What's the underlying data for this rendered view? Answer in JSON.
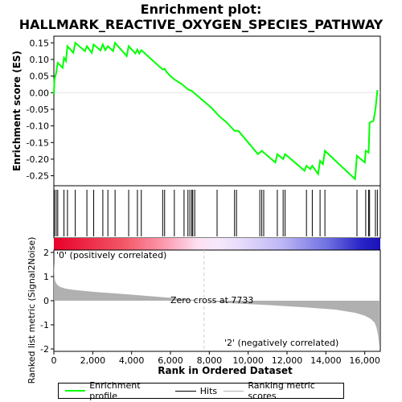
{
  "title": "Enrichment plot:\nHALLMARK_REACTIVE_OXYGEN_SPECIES_PATHWAY",
  "title_line1": "Enrichment plot:",
  "title_line2": "HALLMARK_REACTIVE_OXYGEN_SPECIES_PATHWAY",
  "colors": {
    "enrichment": "#00ff00",
    "hits": "#000000",
    "metric": "#b0b0b0",
    "zero_line": "#cfcfcf",
    "pos_label": "#ff0000",
    "neg_label": "#0000ff"
  },
  "legend": {
    "enrichment": "Enrichment profile",
    "hits": "Hits",
    "metric": "Ranking metric scores"
  },
  "chart_data": [
    {
      "type": "line",
      "name": "enrichment-profile",
      "ylabel": "Enrichment score (ES)",
      "ylim": [
        -0.28,
        0.17
      ],
      "xlim": [
        0,
        16800
      ],
      "yticks": [
        "0.15",
        "0.10",
        "0.05",
        "0.00",
        "-0.05",
        "-0.10",
        "-0.15",
        "-0.20",
        "-0.25"
      ],
      "ytick_values": [
        0.15,
        0.1,
        0.05,
        0.0,
        -0.05,
        -0.1,
        -0.15,
        -0.2,
        -0.25
      ],
      "grid": false,
      "x": [
        0,
        30,
        120,
        200,
        450,
        520,
        620,
        700,
        1000,
        1100,
        1600,
        1700,
        1950,
        2050,
        2400,
        2520,
        2650,
        2780,
        3050,
        3150,
        3750,
        3850,
        4200,
        4300,
        4400,
        4500,
        5500,
        5600,
        5700,
        5800,
        6000,
        6200,
        6600,
        6900,
        7100,
        7300,
        7700,
        8100,
        8500,
        8900,
        9300,
        9500,
        10500,
        10600,
        10700,
        10800,
        11400,
        11500,
        11800,
        11900,
        12900,
        13000,
        13200,
        13300,
        13600,
        13700,
        13850,
        13950,
        15500,
        15600,
        16000,
        16050,
        16200,
        16250,
        16450,
        16550,
        16650
      ],
      "y": [
        -0.005,
        0.04,
        0.06,
        0.09,
        0.075,
        0.105,
        0.095,
        0.14,
        0.12,
        0.15,
        0.125,
        0.14,
        0.12,
        0.145,
        0.127,
        0.145,
        0.128,
        0.14,
        0.125,
        0.15,
        0.11,
        0.14,
        0.118,
        0.13,
        0.118,
        0.128,
        0.075,
        0.07,
        0.072,
        0.062,
        0.05,
        0.04,
        0.025,
        0.01,
        0.005,
        -0.005,
        -0.025,
        -0.045,
        -0.07,
        -0.09,
        -0.115,
        -0.115,
        -0.185,
        -0.18,
        -0.175,
        -0.18,
        -0.21,
        -0.185,
        -0.2,
        -0.185,
        -0.235,
        -0.22,
        -0.23,
        -0.22,
        -0.245,
        -0.205,
        -0.215,
        -0.175,
        -0.26,
        -0.19,
        -0.21,
        -0.175,
        -0.18,
        -0.09,
        -0.085,
        -0.05,
        0.008
      ]
    },
    {
      "type": "scatter",
      "name": "hits",
      "x": [
        30,
        120,
        200,
        520,
        700,
        1100,
        1700,
        2050,
        2520,
        2780,
        3150,
        3850,
        4300,
        4500,
        5600,
        5700,
        6200,
        6700,
        6900,
        7000,
        7100,
        7150,
        7250,
        8400,
        9300,
        9400,
        10600,
        10700,
        10800,
        11500,
        11800,
        11900,
        13000,
        13300,
        13700,
        13950,
        15600,
        16050,
        16200,
        16250,
        16550,
        16650
      ]
    },
    {
      "type": "area",
      "name": "ranking-metric",
      "ylabel": "Ranked list metric (Signal2Noise)",
      "xlabel": "Rank in Ordered Dataset",
      "ylim": [
        -2.1,
        2.1
      ],
      "yticks": [
        "2",
        "1",
        "0",
        "-1",
        "-2"
      ],
      "ytick_values": [
        2,
        1,
        0,
        -1,
        -2
      ],
      "xticks": [
        "0",
        "2,000",
        "4,000",
        "6,000",
        "8,000",
        "10,000",
        "12,000",
        "14,000",
        "16,000"
      ],
      "xtick_values": [
        0,
        2000,
        4000,
        6000,
        8000,
        10000,
        12000,
        14000,
        16000
      ],
      "x": [
        0,
        50,
        150,
        300,
        600,
        1000,
        2000,
        4000,
        6000,
        7733,
        9000,
        11000,
        13000,
        14500,
        15500,
        16000,
        16300,
        16500,
        16600,
        16680,
        16750
      ],
      "y": [
        1.6,
        0.85,
        0.68,
        0.58,
        0.5,
        0.45,
        0.37,
        0.25,
        0.12,
        0.0,
        -0.1,
        -0.18,
        -0.28,
        -0.37,
        -0.5,
        -0.62,
        -0.75,
        -0.9,
        -1.1,
        -1.4,
        -1.9
      ],
      "annotations": {
        "pos": "'0' (positively correlated)",
        "zero": "Zero cross at 7733",
        "neg": "'2' (negatively correlated)"
      },
      "zero_cross": 7733
    }
  ]
}
